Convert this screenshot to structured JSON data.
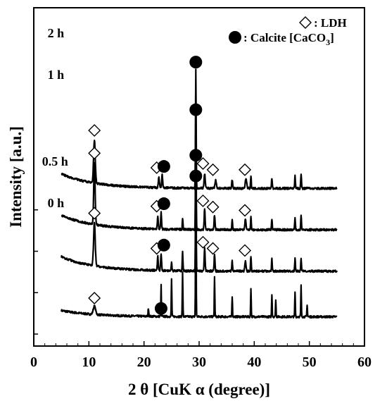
{
  "chart_data": {
    "type": "line",
    "xlabel": "2 θ  [CuK α  (degree)]",
    "ylabel": "Intensity [a.u.]",
    "xlim": [
      0,
      60
    ],
    "xticks": [
      "0",
      "10",
      "20",
      "30",
      "40",
      "50",
      "60"
    ],
    "grid": false,
    "legend": {
      "placement": "top-right",
      "entries": [
        {
          "marker": "open-diamond",
          "text": ": LDH"
        },
        {
          "marker": "filled-circle",
          "text": ": Calcite [CaCO",
          "subscript": "3",
          "close": "]"
        }
      ]
    },
    "series": [
      {
        "name": "2 h",
        "offset": 3,
        "baseline": 0.45,
        "background_rise": 0.35,
        "background_decay_deg": 6,
        "peaks": [
          {
            "x": 11.0,
            "h": 1.05,
            "w": 0.35
          },
          {
            "x": 22.7,
            "h": 0.25,
            "w": 0.25
          },
          {
            "x": 23.3,
            "h": 0.32,
            "w": 0.2
          },
          {
            "x": 29.4,
            "h": 2.85,
            "w": 0.14
          },
          {
            "x": 31.0,
            "h": 0.35,
            "w": 0.25
          },
          {
            "x": 33.0,
            "h": 0.22,
            "w": 0.25
          },
          {
            "x": 36.0,
            "h": 0.2,
            "w": 0.2
          },
          {
            "x": 38.5,
            "h": 0.25,
            "w": 0.3
          },
          {
            "x": 39.4,
            "h": 0.3,
            "w": 0.15
          },
          {
            "x": 43.2,
            "h": 0.25,
            "w": 0.15
          },
          {
            "x": 47.4,
            "h": 0.3,
            "w": 0.15
          },
          {
            "x": 48.5,
            "h": 0.35,
            "w": 0.15
          }
        ]
      },
      {
        "name": "1 h",
        "offset": 2,
        "baseline": 0.45,
        "background_rise": 0.35,
        "background_decay_deg": 6,
        "peaks": [
          {
            "x": 11.0,
            "h": 1.5,
            "w": 0.3
          },
          {
            "x": 22.5,
            "h": 0.3,
            "w": 0.2
          },
          {
            "x": 23.1,
            "h": 0.4,
            "w": 0.2
          },
          {
            "x": 27.0,
            "h": 0.25,
            "w": 0.15
          },
          {
            "x": 29.4,
            "h": 2.7,
            "w": 0.14
          },
          {
            "x": 31.0,
            "h": 0.5,
            "w": 0.2
          },
          {
            "x": 32.8,
            "h": 0.35,
            "w": 0.2
          },
          {
            "x": 36.0,
            "h": 0.25,
            "w": 0.15
          },
          {
            "x": 38.4,
            "h": 0.25,
            "w": 0.25
          },
          {
            "x": 39.4,
            "h": 0.3,
            "w": 0.15
          },
          {
            "x": 43.2,
            "h": 0.25,
            "w": 0.15
          },
          {
            "x": 47.4,
            "h": 0.3,
            "w": 0.15
          },
          {
            "x": 48.5,
            "h": 0.35,
            "w": 0.15
          }
        ]
      },
      {
        "name": "0.5 h",
        "offset": 1,
        "baseline": 0.45,
        "background_rise": 0.35,
        "background_decay_deg": 6,
        "peaks": [
          {
            "x": 11.0,
            "h": 1.05,
            "w": 0.35
          },
          {
            "x": 22.5,
            "h": 0.35,
            "w": 0.2
          },
          {
            "x": 23.1,
            "h": 0.4,
            "w": 0.2
          },
          {
            "x": 25.0,
            "h": 0.2,
            "w": 0.15
          },
          {
            "x": 27.0,
            "h": 0.45,
            "w": 0.15
          },
          {
            "x": 29.4,
            "h": 2.6,
            "w": 0.14
          },
          {
            "x": 31.0,
            "h": 0.55,
            "w": 0.2
          },
          {
            "x": 32.8,
            "h": 0.4,
            "w": 0.2
          },
          {
            "x": 36.0,
            "h": 0.25,
            "w": 0.15
          },
          {
            "x": 38.4,
            "h": 0.25,
            "w": 0.25
          },
          {
            "x": 39.4,
            "h": 0.35,
            "w": 0.15
          },
          {
            "x": 43.2,
            "h": 0.3,
            "w": 0.15
          },
          {
            "x": 47.4,
            "h": 0.3,
            "w": 0.15
          },
          {
            "x": 48.5,
            "h": 0.3,
            "w": 0.15
          }
        ]
      },
      {
        "name": "0 h",
        "offset": 0,
        "baseline": 0.35,
        "background_rise": 0.15,
        "background_decay_deg": 6,
        "peaks": [
          {
            "x": 11.0,
            "h": 0.2,
            "w": 0.5
          },
          {
            "x": 20.8,
            "h": 0.2,
            "w": 0.15
          },
          {
            "x": 23.1,
            "h": 0.75,
            "w": 0.12
          },
          {
            "x": 25.0,
            "h": 0.9,
            "w": 0.12
          },
          {
            "x": 27.0,
            "h": 1.1,
            "w": 0.12
          },
          {
            "x": 29.4,
            "h": 3.7,
            "w": 0.12
          },
          {
            "x": 32.8,
            "h": 0.95,
            "w": 0.12
          },
          {
            "x": 36.0,
            "h": 0.5,
            "w": 0.12
          },
          {
            "x": 39.4,
            "h": 0.7,
            "w": 0.12
          },
          {
            "x": 43.2,
            "h": 0.55,
            "w": 0.12
          },
          {
            "x": 43.9,
            "h": 0.4,
            "w": 0.12
          },
          {
            "x": 47.4,
            "h": 0.6,
            "w": 0.12
          },
          {
            "x": 48.5,
            "h": 0.75,
            "w": 0.12
          },
          {
            "x": 49.6,
            "h": 0.3,
            "w": 0.12
          }
        ]
      }
    ],
    "annotations": [
      {
        "series": "2 h",
        "marker": "open-diamond",
        "positions": [
          {
            "x": 11.0,
            "y": 1.85
          },
          {
            "x": 22.3,
            "y": 0.95
          },
          {
            "x": 30.7,
            "y": 1.05
          },
          {
            "x": 32.5,
            "y": 0.9
          },
          {
            "x": 38.3,
            "y": 0.9
          }
        ]
      },
      {
        "series": "2 h",
        "marker": "filled-circle",
        "positions": [
          {
            "x": 23.6,
            "y": 0.98
          },
          {
            "x": 29.4,
            "y": 3.5
          }
        ]
      },
      {
        "series": "1 h",
        "marker": "open-diamond",
        "positions": [
          {
            "x": 11.0,
            "y": 2.3
          },
          {
            "x": 22.3,
            "y": 1.02
          },
          {
            "x": 30.7,
            "y": 1.15
          },
          {
            "x": 32.5,
            "y": 1.0
          },
          {
            "x": 38.3,
            "y": 0.92
          }
        ]
      },
      {
        "series": "1 h",
        "marker": "filled-circle",
        "positions": [
          {
            "x": 23.6,
            "y": 1.08
          },
          {
            "x": 29.4,
            "y": 3.35
          }
        ]
      },
      {
        "series": "0.5 h",
        "marker": "open-diamond",
        "positions": [
          {
            "x": 11.0,
            "y": 1.85
          },
          {
            "x": 22.3,
            "y": 1.0
          },
          {
            "x": 30.7,
            "y": 1.15
          },
          {
            "x": 32.5,
            "y": 1.0
          },
          {
            "x": 38.3,
            "y": 0.95
          }
        ]
      },
      {
        "series": "0.5 h",
        "marker": "filled-circle",
        "positions": [
          {
            "x": 23.6,
            "y": 1.08
          },
          {
            "x": 29.4,
            "y": 3.25
          }
        ]
      },
      {
        "series": "0 h",
        "marker": "open-diamond",
        "positions": [
          {
            "x": 11.0,
            "y": 0.8
          }
        ]
      },
      {
        "series": "0 h",
        "marker": "filled-circle",
        "positions": [
          {
            "x": 23.1,
            "y": 0.55
          },
          {
            "x": 29.4,
            "y": 3.75
          }
        ]
      }
    ],
    "series_labels": [
      {
        "text": "2 h",
        "x": 2.5,
        "y": 7.2
      },
      {
        "text": "1 h",
        "x": 2.5,
        "y": 6.2
      },
      {
        "text": "0.5 h",
        "x": 1.5,
        "y": 4.1
      },
      {
        "text": "0 h",
        "x": 2.5,
        "y": 3.1
      }
    ]
  }
}
